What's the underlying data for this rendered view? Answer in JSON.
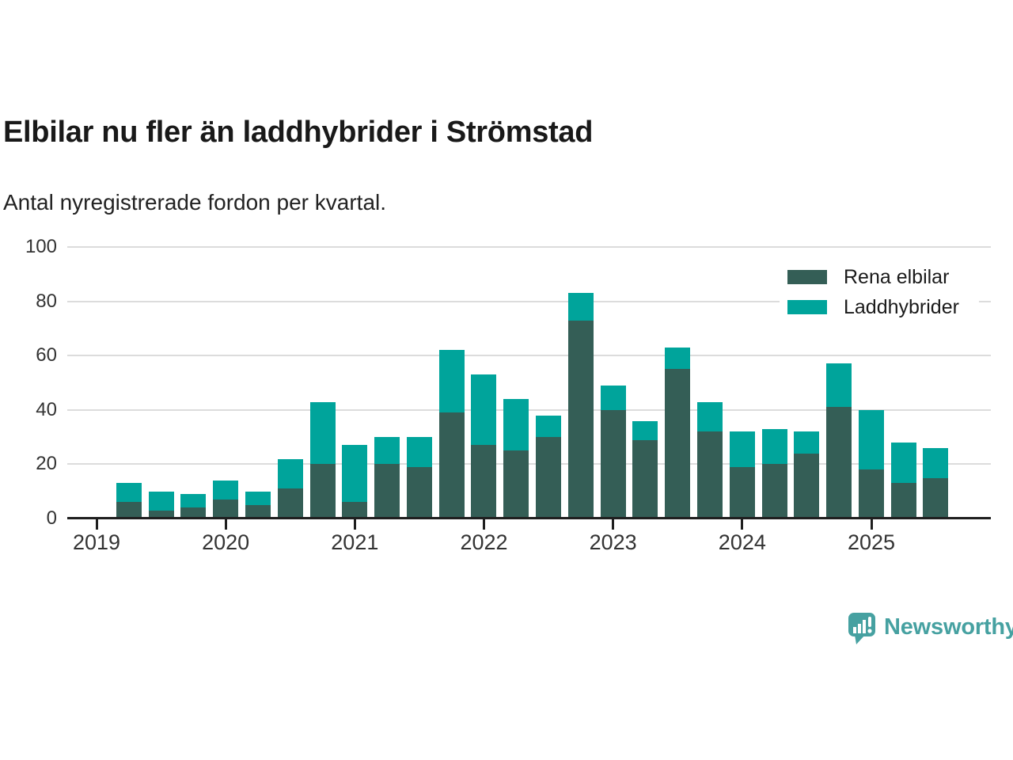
{
  "header": {
    "title": "Elbilar nu fler än laddhybrider i Strömstad",
    "subtitle": "Antal nyregistrerade fordon per kvartal."
  },
  "colors": {
    "electric": "#345e56",
    "hybrid": "#00a49b",
    "axis": "#1f1f1f",
    "grid": "#dcdcdc",
    "label_text": "#333333",
    "brand": "#46a1a1"
  },
  "legend": [
    {
      "label": "Rena elbilar",
      "color_key": "electric"
    },
    {
      "label": "Laddhybrider",
      "color_key": "hybrid"
    }
  ],
  "branding": {
    "name": "Newsworthy"
  },
  "chart_data": {
    "type": "bar",
    "stacked": true,
    "x": [
      "2019-K2",
      "2019-K3",
      "2019-K4",
      "2020-K1",
      "2020-K2",
      "2020-K3",
      "2020-K4",
      "2021-K1",
      "2021-K2",
      "2021-K3",
      "2021-K4",
      "2022-K1",
      "2022-K2",
      "2022-K3",
      "2022-K4",
      "2023-K1",
      "2023-K2",
      "2023-K3",
      "2023-K4",
      "2024-K1",
      "2024-K2",
      "2024-K3",
      "2024-K4",
      "2025-K1",
      "2025-K2",
      "2025-K3"
    ],
    "series": [
      {
        "name": "Rena elbilar",
        "values": [
          6,
          3,
          4,
          7,
          5,
          11,
          20,
          6,
          20,
          19,
          39,
          27,
          25,
          30,
          73,
          40,
          29,
          55,
          32,
          19,
          20,
          24,
          41,
          18,
          13,
          15
        ]
      },
      {
        "name": "Laddhybrider",
        "values": [
          7,
          7,
          5,
          7,
          5,
          11,
          23,
          21,
          10,
          11,
          23,
          26,
          19,
          8,
          10,
          9,
          7,
          8,
          11,
          13,
          13,
          8,
          16,
          22,
          15,
          11
        ]
      }
    ],
    "totals": [
      13,
      10,
      9,
      14,
      10,
      22,
      43,
      27,
      30,
      30,
      62,
      53,
      44,
      38,
      83,
      49,
      36,
      63,
      43,
      32,
      33,
      32,
      57,
      40,
      28,
      26
    ],
    "title": "Elbilar nu fler än laddhybrider i Strömstad",
    "xlabel": "",
    "ylabel": "",
    "xticks": [
      "2019",
      "2020",
      "2021",
      "2022",
      "2023",
      "2024",
      "2025"
    ],
    "yticks": [
      0,
      20,
      40,
      60,
      80,
      100
    ],
    "ylim": [
      0,
      100
    ],
    "grid": "horizontal",
    "legend_position": "top-right"
  }
}
